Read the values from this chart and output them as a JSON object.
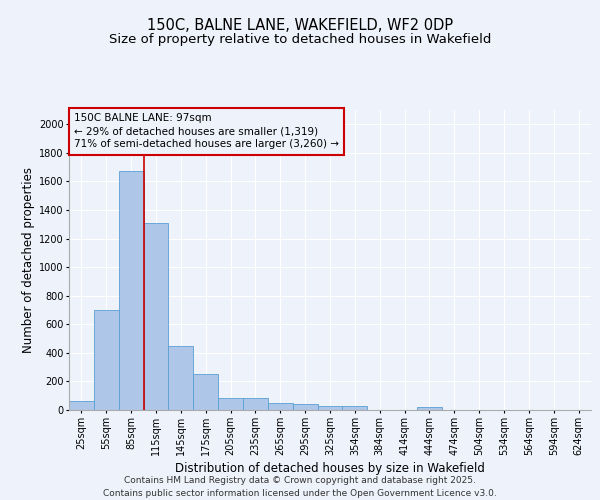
{
  "title_line1": "150C, BALNE LANE, WAKEFIELD, WF2 0DP",
  "title_line2": "Size of property relative to detached houses in Wakefield",
  "xlabel": "Distribution of detached houses by size in Wakefield",
  "ylabel": "Number of detached properties",
  "categories": [
    "25sqm",
    "55sqm",
    "85sqm",
    "115sqm",
    "145sqm",
    "175sqm",
    "205sqm",
    "235sqm",
    "265sqm",
    "295sqm",
    "325sqm",
    "354sqm",
    "384sqm",
    "414sqm",
    "444sqm",
    "474sqm",
    "504sqm",
    "534sqm",
    "564sqm",
    "594sqm",
    "624sqm"
  ],
  "values": [
    65,
    700,
    1670,
    1310,
    450,
    255,
    85,
    85,
    50,
    40,
    30,
    25,
    0,
    0,
    20,
    0,
    0,
    0,
    0,
    0,
    0
  ],
  "bar_color": "#aec6e8",
  "bar_edge_color": "#5a9fd4",
  "background_color": "#eef2fb",
  "grid_color": "#ffffff",
  "annotation_box_text": "150C BALNE LANE: 97sqm\n← 29% of detached houses are smaller (1,319)\n71% of semi-detached houses are larger (3,260) →",
  "annotation_box_color": "#cc0000",
  "vline_x_index": 2,
  "vline_color": "#cc0000",
  "ylim": [
    0,
    2100
  ],
  "yticks": [
    0,
    200,
    400,
    600,
    800,
    1000,
    1200,
    1400,
    1600,
    1800,
    2000
  ],
  "footer_line1": "Contains HM Land Registry data © Crown copyright and database right 2025.",
  "footer_line2": "Contains public sector information licensed under the Open Government Licence v3.0.",
  "title_fontsize": 10.5,
  "subtitle_fontsize": 9.5,
  "axis_label_fontsize": 8.5,
  "tick_fontsize": 7,
  "annotation_fontsize": 7.5,
  "footer_fontsize": 6.5
}
